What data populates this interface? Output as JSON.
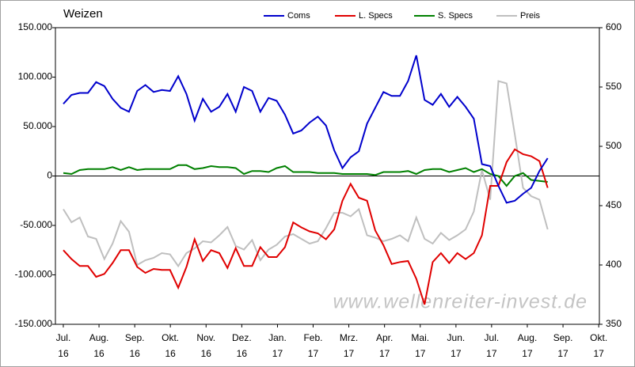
{
  "chart_data": {
    "type": "line",
    "title": "Weizen",
    "x": [
      0,
      1,
      2,
      3,
      4,
      5,
      6,
      7,
      8,
      9,
      10,
      11,
      12,
      13,
      14,
      15,
      16,
      17,
      18,
      19,
      20,
      21,
      22,
      23,
      24,
      25,
      26,
      27,
      28,
      29,
      30,
      31,
      32,
      33,
      34,
      35,
      36,
      37,
      38,
      39,
      40,
      41,
      42,
      43,
      44,
      45,
      46,
      47,
      48,
      49,
      50,
      51,
      52,
      53,
      54,
      55,
      56,
      57,
      58,
      59
    ],
    "xlim": [
      -0.96,
      65.3
    ],
    "xticks": [
      {
        "value": 0,
        "label": "Jul."
      },
      {
        "value": 4.35,
        "label": "Aug."
      },
      {
        "value": 8.7,
        "label": "Sep."
      },
      {
        "value": 13.04,
        "label": "Okt."
      },
      {
        "value": 17.39,
        "label": "Nov."
      },
      {
        "value": 21.74,
        "label": "Dez."
      },
      {
        "value": 26.09,
        "label": "Jan."
      },
      {
        "value": 30.43,
        "label": "Feb."
      },
      {
        "value": 34.78,
        "label": "Mrz."
      },
      {
        "value": 39.13,
        "label": "Apr."
      },
      {
        "value": 43.48,
        "label": "Mai."
      },
      {
        "value": 47.83,
        "label": "Jun."
      },
      {
        "value": 52.17,
        "label": "Jul."
      },
      {
        "value": 56.52,
        "label": "Aug."
      },
      {
        "value": 60.87,
        "label": "Sep."
      },
      {
        "value": 65.22,
        "label": "Okt."
      }
    ],
    "xtick_years": [
      "16",
      "16",
      "16",
      "16",
      "16",
      "16",
      "17",
      "17",
      "17",
      "17",
      "17",
      "17",
      "17",
      "17",
      "17",
      "17"
    ],
    "ylim": [
      -150000,
      150000
    ],
    "yticks": [
      {
        "value": 150000,
        "label": "150.000"
      },
      {
        "value": 100000,
        "label": "100.000"
      },
      {
        "value": 50000,
        "label": "50.000"
      },
      0,
      {
        "value": -50000,
        "label": "-50.000"
      },
      {
        "value": -100000,
        "label": "-100.000"
      },
      {
        "value": -150000,
        "label": "-150.000"
      }
    ],
    "y2lim": [
      350,
      600
    ],
    "y2ticks": [
      600,
      550,
      500,
      450,
      400,
      350
    ],
    "series": [
      {
        "name": "Coms",
        "color": "#0000cc",
        "values": [
          73000,
          82000,
          84000,
          84000,
          95000,
          91000,
          78000,
          69000,
          65000,
          86000,
          92000,
          85000,
          87000,
          86000,
          101000,
          83000,
          56000,
          78000,
          65000,
          70000,
          83000,
          65000,
          90000,
          86000,
          65000,
          79000,
          76000,
          62000,
          43000,
          46000,
          54000,
          60000,
          51000,
          26000,
          8000,
          19000,
          25000,
          53000,
          69000,
          85000,
          81000,
          81000,
          96000,
          122000,
          77000,
          72000,
          83000,
          70000,
          80000,
          70000,
          58000,
          12000,
          10000,
          -10000,
          -27000,
          -25000,
          -18000,
          -12000,
          5000,
          18000
        ]
      },
      {
        "name": "L. Specs",
        "color": "#e00000",
        "values": [
          -75000,
          -84000,
          -91000,
          -91000,
          -102000,
          -99000,
          -88000,
          -75000,
          -75000,
          -92000,
          -98000,
          -94000,
          -95000,
          -95000,
          -113000,
          -92000,
          -64000,
          -86000,
          -75000,
          -78000,
          -93000,
          -73000,
          -91000,
          -91000,
          -72000,
          -82000,
          -82000,
          -72000,
          -47000,
          -52000,
          -56000,
          -58000,
          -64000,
          -54000,
          -25000,
          -8000,
          -22000,
          -25000,
          -55000,
          -70000,
          -89000,
          -87000,
          -86000,
          -104000,
          -130000,
          -87000,
          -78000,
          -88000,
          -78000,
          -84000,
          -78000,
          -60000,
          -10000,
          -10000,
          14000,
          27000,
          22000,
          20000,
          15000,
          -12000
        ]
      },
      {
        "name": "S. Specs",
        "color": "#008000",
        "values": [
          3000,
          2000,
          6000,
          7000,
          7000,
          7000,
          9000,
          6000,
          9000,
          6000,
          7000,
          7000,
          7000,
          7000,
          11000,
          11000,
          7000,
          8000,
          10000,
          9000,
          9000,
          8000,
          2000,
          5000,
          5000,
          4000,
          8000,
          10000,
          4000,
          4000,
          4000,
          3000,
          3000,
          3000,
          2000,
          2000,
          2000,
          2000,
          1000,
          4000,
          4000,
          4000,
          5000,
          2000,
          6000,
          7000,
          7000,
          4000,
          6000,
          8000,
          4000,
          7000,
          2000,
          0,
          -10000,
          0,
          3000,
          -4000,
          -5000,
          -6000
        ]
      },
      {
        "name": "Preis",
        "color": "#bfbfbf",
        "axis": "y2",
        "values": [
          447,
          436,
          440,
          424,
          422,
          405,
          418,
          437,
          428,
          400,
          404,
          406,
          410,
          409,
          399,
          410,
          414,
          420,
          419,
          425,
          432,
          416,
          413,
          421,
          404,
          413,
          417,
          424,
          426,
          422,
          418,
          420,
          431,
          444,
          444,
          441,
          447,
          425,
          423,
          420,
          422,
          425,
          420,
          440,
          422,
          418,
          427,
          421,
          425,
          430,
          445,
          480,
          455,
          555,
          553,
          510,
          465,
          458,
          455,
          430
        ]
      }
    ],
    "watermark": "www.wellenreiter-invest.de"
  }
}
